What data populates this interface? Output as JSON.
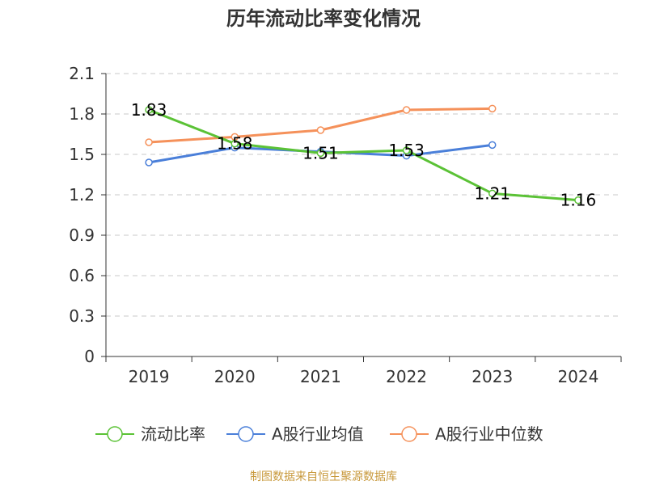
{
  "chart_data": {
    "type": "line",
    "title": "历年流动比率变化情况",
    "categories": [
      "2019",
      "2020",
      "2021",
      "2022",
      "2023",
      "2024"
    ],
    "ylim": [
      0,
      2.1
    ],
    "yticks": [
      "0",
      "0.3",
      "0.6",
      "0.9",
      "1.2",
      "1.5",
      "1.8",
      "2.1"
    ],
    "grid": true,
    "legend_position": "bottom",
    "series": [
      {
        "name": "流动比率",
        "color": "#5bc236",
        "values": [
          1.83,
          1.58,
          1.51,
          1.53,
          1.21,
          1.16
        ],
        "labels": [
          "1.83",
          "1.58",
          "1.51",
          "1.53",
          "1.21",
          "1.16"
        ]
      },
      {
        "name": "A股行业均值",
        "color": "#4a7fd9",
        "values": [
          1.44,
          1.55,
          1.52,
          1.49,
          1.57,
          null
        ]
      },
      {
        "name": "A股行业中位数",
        "color": "#f5915a",
        "values": [
          1.59,
          1.63,
          1.68,
          1.83,
          1.84,
          null
        ]
      }
    ]
  },
  "source": "制图数据来自恒生聚源数据库"
}
